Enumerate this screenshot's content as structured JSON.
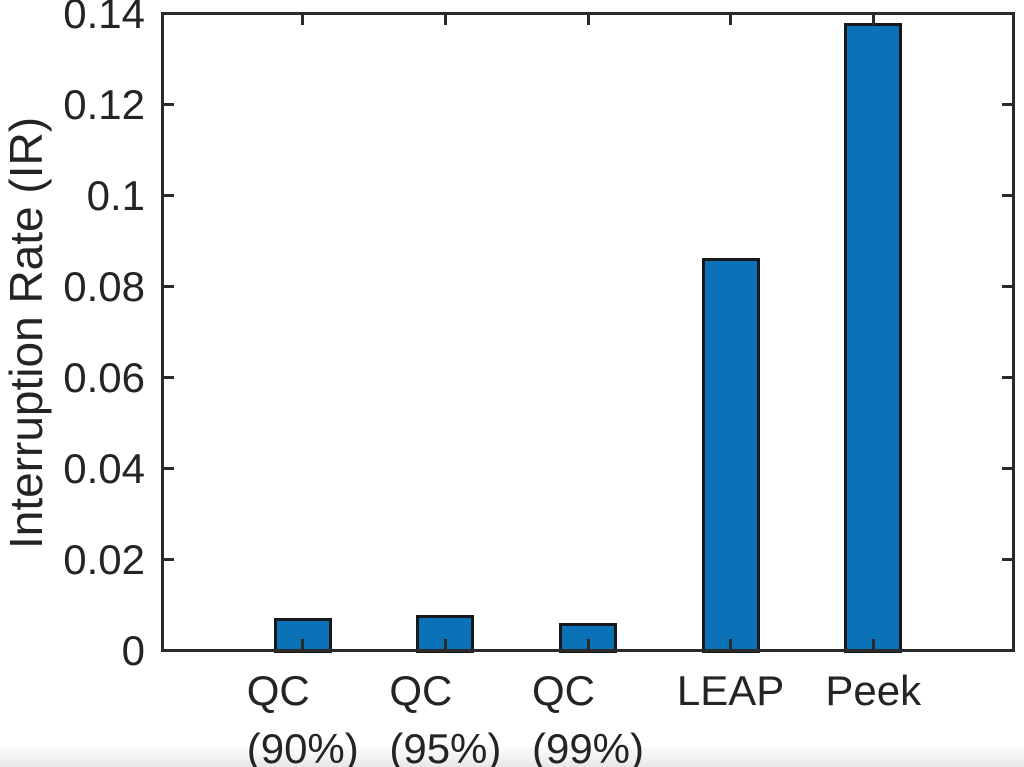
{
  "chart_data": {
    "type": "bar",
    "title": "",
    "xlabel": "",
    "ylabel": "Interruption Rate (IR)",
    "categories": [
      "QC\n(90%)",
      "QC\n(95%)",
      "QC\n(99%)",
      "LEAP",
      "Peek"
    ],
    "values": [
      0.0073,
      0.0079,
      0.0062,
      0.0864,
      0.138
    ],
    "ylim": [
      0,
      0.14
    ],
    "yticks": [
      0,
      0.02,
      0.04,
      0.06,
      0.08,
      0.1,
      0.12,
      0.14
    ],
    "ytick_labels": [
      "0",
      "0.02",
      "0.04",
      "0.06",
      "0.08",
      "0.1",
      "0.12",
      "0.14"
    ],
    "grid": false,
    "legend": "none",
    "tick_direction": "in",
    "box": true,
    "bar_fill_color": "#0c72b8",
    "bar_edge_color": "#17181a",
    "axis_color": "#2a2a2a",
    "text_color": "#242424"
  }
}
